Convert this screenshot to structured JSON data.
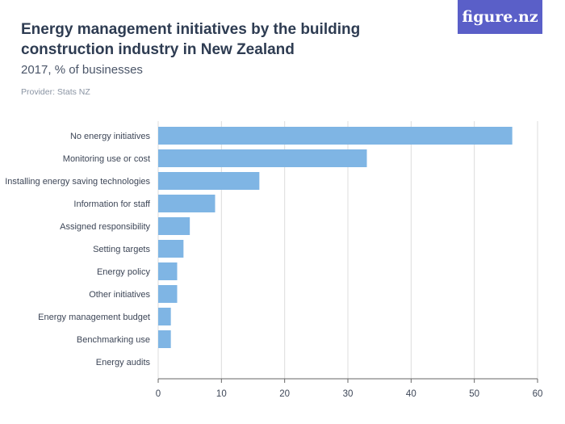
{
  "header": {
    "title": "Energy management initiatives by the building construction industry in New Zealand",
    "subtitle": "2017, % of businesses",
    "provider": "Provider: Stats NZ",
    "logo": "figure.nz"
  },
  "colors": {
    "bar": "#7fb5e4",
    "logo_bg": "#5a5fc8"
  },
  "chart_data": {
    "type": "bar",
    "orientation": "horizontal",
    "title": "Energy management initiatives by the building construction industry in New Zealand",
    "subtitle": "2017, % of businesses",
    "categories": [
      "No energy initiatives",
      "Monitoring use or cost",
      "Installing energy saving technologies",
      "Information for staff",
      "Assigned responsibility",
      "Setting targets",
      "Energy policy",
      "Other initiatives",
      "Energy management budget",
      "Benchmarking use",
      "Energy audits"
    ],
    "values": [
      56,
      33,
      16,
      9,
      5,
      4,
      3,
      3,
      2,
      2,
      0
    ],
    "xlim": [
      0,
      60
    ],
    "xticks": [
      0,
      10,
      20,
      30,
      40,
      50,
      60
    ],
    "grid": true
  }
}
